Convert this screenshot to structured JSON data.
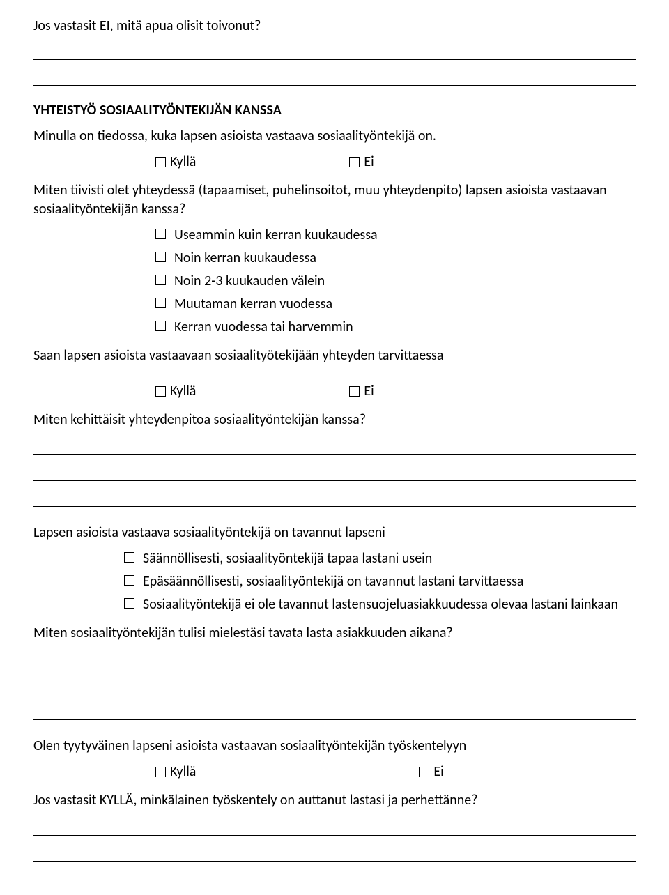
{
  "colors": {
    "text": "#000000",
    "background": "#ffffff",
    "line": "#000000"
  },
  "typography": {
    "body_fontsize_pt": 11,
    "title_weight": "bold",
    "font_family": "Calibri"
  },
  "q1": "Jos vastasit EI, mitä apua olisit toivonut?",
  "section_title": "YHTEISTYÖ SOSIAALITYÖNTEKIJÄN KANSSA",
  "q2": "Minulla on tiedossa, kuka lapsen asioista vastaava sosiaalityöntekijä on.",
  "yn": {
    "yes": "Kyllä",
    "no": "Ei"
  },
  "q3": "Miten tiivisti olet yhteydessä (tapaamiset, puhelinsoitot, muu yhteydenpito) lapsen asioista vastaavan sosiaalityöntekijän kanssa?",
  "freq_options": [
    "Useammin kuin kerran kuukaudessa",
    "Noin kerran kuukaudessa",
    "Noin 2-3 kuukauden välein",
    "Muutaman kerran vuodessa",
    "Kerran vuodessa tai harvemmin"
  ],
  "q4": "Saan lapsen asioista vastaavaan sosiaalityötekijään yhteyden tarvittaessa",
  "q5": "Miten kehittäisit yhteydenpitoa sosiaalityöntekijän kanssa?",
  "q6": "Lapsen asioista vastaava sosiaalityöntekijä on tavannut lapseni",
  "meet_options": [
    "Säännöllisesti, sosiaalityöntekijä tapaa lastani usein",
    "Epäsäännöllisesti, sosiaalityöntekijä on tavannut lastani tarvittaessa",
    "Sosiaalityöntekijä ei ole tavannut lastensuojeluasiakkuudessa olevaa lastani lainkaan"
  ],
  "q7": "Miten sosiaalityöntekijän tulisi mielestäsi tavata lasta asiakkuuden aikana?",
  "q8": "Olen tyytyväinen lapseni asioista vastaavan sosiaalityöntekijän työskentelyyn",
  "q9": "Jos vastasit KYLLÄ, minkälainen työskentely on auttanut lastasi ja perhettänne?"
}
